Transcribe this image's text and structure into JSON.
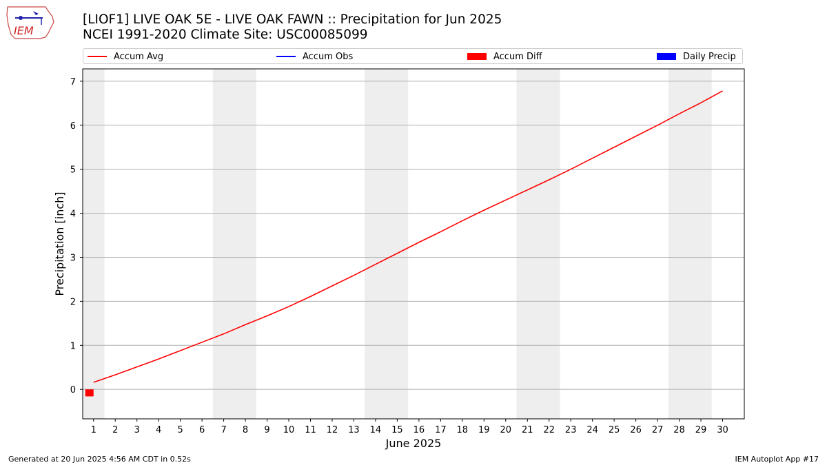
{
  "header": {
    "title_line1": "[LIOF1] LIVE OAK 5E - LIVE OAK FAWN :: Precipitation for Jun 2025",
    "title_line2": "NCEI 1991-2020 Climate Site: USC00085099",
    "logo_text": "IEM"
  },
  "legend": [
    {
      "label": "Accum Avg",
      "color": "#ff0000",
      "kind": "line"
    },
    {
      "label": "Accum Obs",
      "color": "#0000ff",
      "kind": "line"
    },
    {
      "label": "Accum Diff",
      "color": "#ff0000",
      "kind": "box"
    },
    {
      "label": "Daily Precip",
      "color": "#0000ff",
      "kind": "box"
    }
  ],
  "footer": {
    "generated": "Generated at 20 Jun 2025 4:56 AM CDT in 0.52s",
    "app": "IEM Autoplot App #17"
  },
  "chart_data": {
    "type": "line",
    "xlabel": "June 2025",
    "ylabel": "Precipitation [inch]",
    "xlim": [
      0.5,
      31
    ],
    "ylim": [
      -0.67,
      7.28
    ],
    "grid": true,
    "legend_position": "top",
    "x_ticks": [
      1,
      2,
      3,
      4,
      5,
      6,
      7,
      8,
      9,
      10,
      11,
      12,
      13,
      14,
      15,
      16,
      17,
      18,
      19,
      20,
      21,
      22,
      23,
      24,
      25,
      26,
      27,
      28,
      29,
      30
    ],
    "y_ticks": [
      0,
      1,
      2,
      3,
      4,
      5,
      6,
      7
    ],
    "weekend_days": [
      1,
      7,
      8,
      14,
      15,
      21,
      22,
      28,
      29
    ],
    "series": [
      {
        "name": "Accum Avg",
        "type": "line",
        "color": "#ff0000",
        "x": [
          1,
          2,
          3,
          4,
          5,
          6,
          7,
          8,
          9,
          10,
          11,
          12,
          13,
          14,
          15,
          16,
          17,
          18,
          19,
          20,
          21,
          22,
          23,
          24,
          25,
          26,
          27,
          28,
          29,
          30
        ],
        "values": [
          0.16,
          0.33,
          0.51,
          0.69,
          0.88,
          1.07,
          1.26,
          1.47,
          1.67,
          1.88,
          2.11,
          2.35,
          2.59,
          2.84,
          3.09,
          3.34,
          3.58,
          3.83,
          4.07,
          4.3,
          4.53,
          4.76,
          5.0,
          5.25,
          5.5,
          5.75,
          6.0,
          6.26,
          6.51,
          6.78
        ]
      },
      {
        "name": "Accum Diff",
        "type": "bar",
        "color": "#ff0000",
        "x": [
          1
        ],
        "values": [
          -0.16
        ]
      }
    ]
  }
}
